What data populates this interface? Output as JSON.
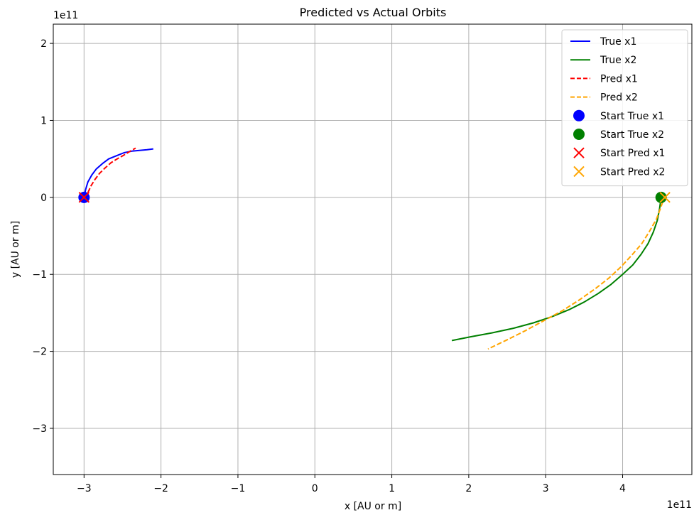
{
  "chart_data": {
    "type": "line",
    "title": "Predicted vs Actual Orbits",
    "xlabel": "x [AU or m]",
    "ylabel": "y [AU or m]",
    "x_offset_label": "1e11",
    "y_offset_label": "1e11",
    "xlim": [
      -3.4,
      4.9
    ],
    "ylim": [
      -3.6,
      2.25
    ],
    "xticks": [
      -3,
      -2,
      -1,
      0,
      1,
      2,
      3,
      4
    ],
    "yticks": [
      -3,
      -2,
      -1,
      0,
      1,
      2
    ],
    "xtick_labels": [
      "−3",
      "−2",
      "−1",
      "0",
      "1",
      "2",
      "3",
      "4"
    ],
    "ytick_labels": [
      "−3",
      "−2",
      "−1",
      "0",
      "1",
      "2"
    ],
    "grid": true,
    "legend_position": "top-right",
    "series": [
      {
        "name": "True x1",
        "color": "#0000ff",
        "style": "solid",
        "x": [
          -3.0,
          -2.98,
          -2.95,
          -2.9,
          -2.84,
          -2.76,
          -2.68,
          -2.58,
          -2.48,
          -2.38,
          -2.28,
          -2.18,
          -2.1
        ],
        "y": [
          0.0,
          0.1,
          0.2,
          0.29,
          0.37,
          0.44,
          0.5,
          0.54,
          0.58,
          0.6,
          0.61,
          0.62,
          0.63
        ]
      },
      {
        "name": "True x2",
        "color": "#008000",
        "style": "solid",
        "x": [
          4.5,
          4.48,
          4.45,
          4.4,
          4.33,
          4.24,
          4.13,
          4.0,
          3.85,
          3.68,
          3.5,
          3.3,
          3.08,
          2.84,
          2.58,
          2.3,
          2.03,
          1.78
        ],
        "y": [
          0.0,
          -0.15,
          -0.3,
          -0.45,
          -0.6,
          -0.74,
          -0.88,
          -1.0,
          -1.13,
          -1.25,
          -1.36,
          -1.46,
          -1.55,
          -1.63,
          -1.7,
          -1.76,
          -1.81,
          -1.86
        ]
      },
      {
        "name": "Pred x1",
        "color": "#ff0000",
        "style": "dashed",
        "x": [
          -2.97,
          -2.95,
          -2.91,
          -2.86,
          -2.8,
          -2.73,
          -2.65,
          -2.57,
          -2.48,
          -2.4,
          -2.33
        ],
        "y": [
          -0.03,
          0.06,
          0.15,
          0.23,
          0.31,
          0.38,
          0.45,
          0.5,
          0.55,
          0.6,
          0.64
        ]
      },
      {
        "name": "Pred x2",
        "color": "#ffa500",
        "style": "dashed",
        "x": [
          4.55,
          4.5,
          4.44,
          4.35,
          4.25,
          4.12,
          3.98,
          3.82,
          3.64,
          3.44,
          3.22,
          2.98,
          2.74,
          2.5,
          2.25
        ],
        "y": [
          0.03,
          -0.12,
          -0.28,
          -0.44,
          -0.6,
          -0.75,
          -0.9,
          -1.05,
          -1.19,
          -1.33,
          -1.47,
          -1.6,
          -1.73,
          -1.85,
          -1.97
        ]
      }
    ],
    "markers": [
      {
        "name": "Start True x1",
        "shape": "circle",
        "color": "#0000ff",
        "x": -3.0,
        "y": 0.0
      },
      {
        "name": "Start True x2",
        "shape": "circle",
        "color": "#008000",
        "x": 4.5,
        "y": 0.0
      },
      {
        "name": "Start Pred x1",
        "shape": "x",
        "color": "#ff0000",
        "x": -3.0,
        "y": 0.0
      },
      {
        "name": "Start Pred x2",
        "shape": "x",
        "color": "#ffa500",
        "x": 4.55,
        "y": 0.0
      }
    ]
  }
}
